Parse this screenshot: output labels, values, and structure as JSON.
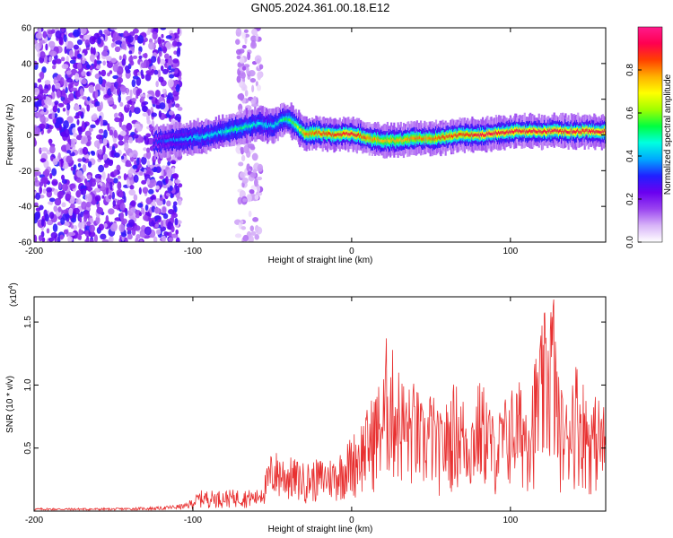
{
  "figure": {
    "title": "GN05.2024.361.00.18.E12"
  },
  "chart_data": [
    {
      "type": "heatmap",
      "title": "",
      "xlabel": "Height of straight line (km)",
      "ylabel": "Frequency (Hz)",
      "xlim": [
        -200,
        160
      ],
      "ylim": [
        -60,
        60
      ],
      "x_ticks": [
        -200,
        -100,
        0,
        100
      ],
      "y_ticks": [
        -60,
        -40,
        -20,
        0,
        20,
        40,
        60
      ],
      "grid": false,
      "colorbar": {
        "label": "Normalized spectral amplitude",
        "ticks": [
          0.0,
          0.2,
          0.4,
          0.6,
          0.8
        ],
        "range": [
          0,
          1
        ],
        "colormap": [
          "#ffffff",
          "#d8b4f8",
          "#9a44f0",
          "#6a00f0",
          "#2020ff",
          "#00a8ff",
          "#00ffe0",
          "#00ff40",
          "#a0ff00",
          "#ffff00",
          "#ffb000",
          "#ff4000",
          "#ff0050",
          "#ff1a8c"
        ]
      },
      "ridge": {
        "x": [
          -125,
          -115,
          -105,
          -95,
          -85,
          -75,
          -65,
          -58,
          -50,
          -45,
          -40,
          -35,
          -30,
          -20,
          -10,
          0,
          10,
          20,
          30,
          40,
          50,
          60,
          70,
          80,
          90,
          100,
          110,
          120,
          130,
          140,
          150,
          160
        ],
        "y": [
          -4,
          -3,
          -2,
          -1,
          1,
          3,
          5,
          6,
          5,
          8,
          9,
          5,
          1,
          1,
          0,
          1,
          -2,
          -3,
          -3,
          -2,
          -2,
          -1,
          0,
          0,
          1,
          2,
          2,
          2,
          2,
          2,
          2,
          2
        ],
        "amplitude": [
          0.3,
          0.35,
          0.4,
          0.45,
          0.45,
          0.5,
          0.5,
          0.45,
          0.45,
          0.5,
          0.55,
          0.6,
          0.8,
          0.85,
          0.85,
          0.9,
          0.8,
          0.75,
          0.75,
          0.8,
          0.8,
          0.85,
          0.85,
          0.9,
          0.9,
          0.9,
          0.9,
          0.9,
          0.9,
          0.9,
          0.9,
          0.9
        ]
      },
      "noise_regions": [
        {
          "x_range": [
            -200,
            -108
          ],
          "y_range": [
            -60,
            60
          ],
          "amplitude": 0.2
        },
        {
          "x_range": [
            -72,
            -57
          ],
          "y_range": [
            -60,
            60
          ],
          "amplitude": 0.1
        }
      ]
    },
    {
      "type": "line",
      "title": "",
      "xlabel": "Height of straight line (km)",
      "ylabel": "SNR (10 * v/v)",
      "y_multiplier": "(x10",
      "y_multiplier_exp": "4",
      "y_multiplier_close": ")",
      "xlim": [
        -200,
        160
      ],
      "ylim": [
        0,
        1.7
      ],
      "x_ticks": [
        -200,
        -100,
        0,
        100
      ],
      "y_ticks": [
        0.5,
        1.0,
        1.5
      ],
      "y_tick_labels": [
        "0.5",
        "1.0",
        "1.5"
      ],
      "grid": false,
      "series": [
        {
          "color": "#e83030",
          "envelope": {
            "x": [
              -200,
              -150,
              -120,
              -105,
              -100,
              -95,
              -80,
              -70,
              -60,
              -55,
              -50,
              -40,
              -30,
              -20,
              -10,
              0,
              5,
              10,
              15,
              20,
              22,
              25,
              30,
              35,
              40,
              45,
              50,
              55,
              60,
              65,
              70,
              75,
              80,
              85,
              90,
              95,
              100,
              105,
              110,
              115,
              120,
              124,
              127,
              130,
              135,
              140,
              145,
              150,
              155,
              160
            ],
            "y": [
              0.02,
              0.02,
              0.03,
              0.05,
              0.1,
              0.15,
              0.15,
              0.16,
              0.15,
              0.25,
              0.45,
              0.4,
              0.35,
              0.38,
              0.4,
              0.55,
              0.65,
              0.75,
              0.9,
              1.0,
              1.28,
              1.2,
              1.05,
              0.9,
              0.95,
              0.75,
              0.9,
              0.7,
              0.8,
              0.95,
              0.85,
              0.75,
              0.95,
              0.9,
              0.65,
              0.8,
              0.9,
              0.95,
              0.9,
              1.1,
              1.35,
              1.6,
              1.68,
              1.0,
              0.8,
              1.15,
              1.0,
              0.8,
              0.85,
              0.75
            ]
          }
        }
      ]
    }
  ]
}
